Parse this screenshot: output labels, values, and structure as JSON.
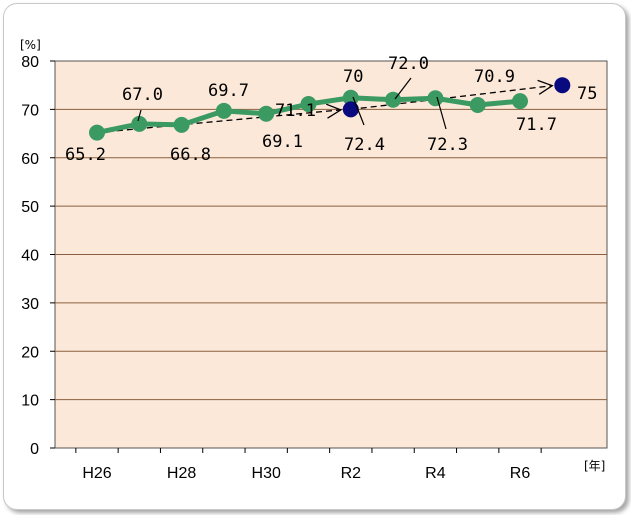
{
  "chart_data": {
    "type": "line",
    "y_unit": "[%]",
    "x_unit": "[年]",
    "ylim": [
      0,
      80
    ],
    "yticks": [
      "0",
      "10",
      "20",
      "30",
      "40",
      "50",
      "60",
      "70",
      "80"
    ],
    "x_tick_labels": [
      {
        "x": 0,
        "label": "H26"
      },
      {
        "x": 2,
        "label": "H28"
      },
      {
        "x": 4,
        "label": "H30"
      },
      {
        "x": 6,
        "label": "R2"
      },
      {
        "x": 8,
        "label": "R4"
      },
      {
        "x": 10,
        "label": "R6"
      }
    ],
    "grid": true,
    "series": [
      {
        "type": "line",
        "color": "#3a9a62",
        "points": [
          {
            "x": 0,
            "y": 65.2,
            "label": "65.2"
          },
          {
            "x": 1,
            "y": 67.0,
            "label": "67.0"
          },
          {
            "x": 2,
            "y": 66.8,
            "label": "66.8"
          },
          {
            "x": 3,
            "y": 69.7,
            "label": "69.7"
          },
          {
            "x": 4,
            "y": 69.1,
            "label": "69.1"
          },
          {
            "x": 5,
            "y": 71.1,
            "label": "71.1"
          },
          {
            "x": 6,
            "y": 72.4,
            "label": "72.4"
          },
          {
            "x": 7,
            "y": 72.0,
            "label": "72.0"
          },
          {
            "x": 8,
            "y": 72.3,
            "label": "72.3"
          },
          {
            "x": 9,
            "y": 70.9,
            "label": "70.9"
          },
          {
            "x": 10,
            "y": 71.7,
            "label": "71.7"
          }
        ]
      },
      {
        "type": "target",
        "color": "#0a0a80",
        "points": [
          {
            "x": 6,
            "y": 70,
            "label": "70"
          },
          {
            "x": 11,
            "y": 75,
            "label": "75"
          }
        ]
      }
    ],
    "trend_arrows": [
      {
        "from": {
          "x": 0,
          "y": 65.2
        },
        "to": {
          "x": 6,
          "y": 70
        }
      },
      {
        "from": {
          "x": 6,
          "y": 70
        },
        "to": {
          "x": 11,
          "y": 75
        }
      }
    ],
    "colors": {
      "plot_background": "#fce8d8",
      "gridline": "#8a6040",
      "line": "#3a9a62",
      "target_marker": "#0a0a80"
    }
  }
}
